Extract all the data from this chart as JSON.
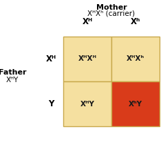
{
  "title_top": "Mother",
  "subtitle_top": "XᴴXʰ (carrier)",
  "father_label": "Father",
  "father_genotype": "XᴴY",
  "col_headers": [
    "Xᴴ",
    "Xʰ"
  ],
  "row_headers": [
    "Xᴴ",
    "Y"
  ],
  "cells": [
    [
      "XᴴXᴴ",
      "XᴴXʰ"
    ],
    [
      "XᴴY",
      "XʰY"
    ]
  ],
  "cell_colors": [
    [
      "#f5e0a0",
      "#f5e0a0"
    ],
    [
      "#f5e0a0",
      "#d93b1a"
    ]
  ],
  "cell_text_colors": [
    [
      "#1a1a1a",
      "#1a1a1a"
    ],
    [
      "#1a1a1a",
      "#1a1a1a"
    ]
  ],
  "grid_color": "#c8a84b",
  "background_color": "#ffffff",
  "font_size_header": 8.5,
  "font_size_cell": 7.5,
  "font_size_title": 8,
  "font_size_label": 7.5
}
